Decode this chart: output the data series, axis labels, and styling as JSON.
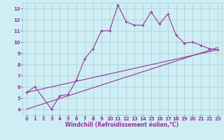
{
  "xlabel": "Windchill (Refroidissement éolien,°C)",
  "bg_color": "#cdeef5",
  "grid_color": "#aacccc",
  "line_color": "#993399",
  "x_data": [
    0,
    1,
    2,
    3,
    4,
    5,
    6,
    7,
    8,
    9,
    10,
    11,
    12,
    13,
    14,
    15,
    16,
    17,
    18,
    19,
    20,
    21,
    22,
    23
  ],
  "y_main": [
    5.5,
    6.0,
    null,
    4.0,
    5.2,
    5.3,
    6.6,
    8.5,
    9.4,
    11.0,
    11.0,
    13.3,
    11.8,
    11.5,
    11.5,
    12.7,
    11.6,
    12.5,
    10.6,
    9.9,
    10.0,
    9.7,
    9.4,
    9.3
  ],
  "line1_x": [
    0,
    23
  ],
  "line1_y": [
    5.5,
    9.3
  ],
  "line2_x": [
    0,
    23
  ],
  "line2_y": [
    4.0,
    9.5
  ],
  "xlim": [
    -0.5,
    23.5
  ],
  "ylim": [
    3.5,
    13.5
  ],
  "yticks": [
    4,
    5,
    6,
    7,
    8,
    9,
    10,
    11,
    12,
    13
  ],
  "xticks": [
    0,
    1,
    2,
    3,
    4,
    5,
    6,
    7,
    8,
    9,
    10,
    11,
    12,
    13,
    14,
    15,
    16,
    17,
    18,
    19,
    20,
    21,
    22,
    23
  ],
  "xlabel_fontsize": 5.5,
  "tick_fontsize": 5.0,
  "linewidth": 0.8,
  "marker_size": 3
}
